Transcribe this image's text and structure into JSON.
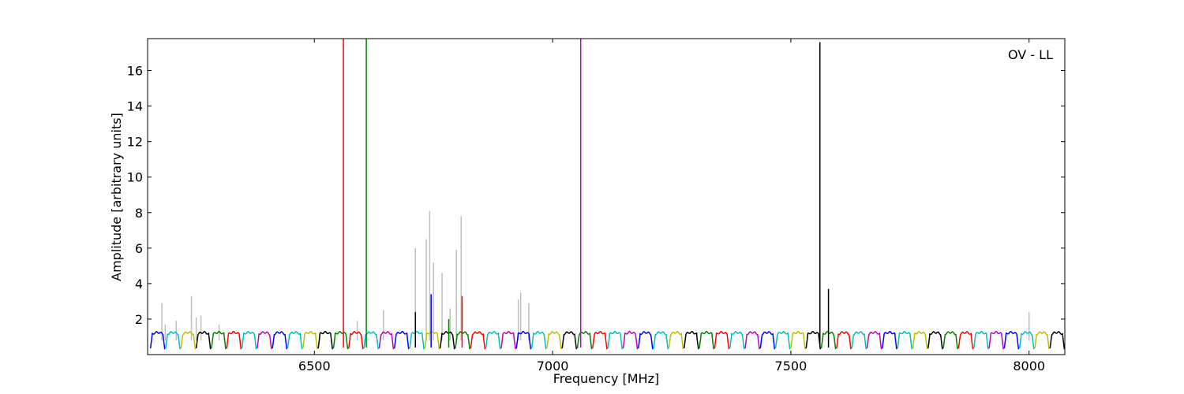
{
  "chart_data": {
    "type": "line",
    "title": "",
    "annotation": "OV - LL",
    "xlabel": "Frequency [MHz]",
    "ylabel": "Amplitude [arbitrary units]",
    "xlim": [
      6150,
      8075
    ],
    "ylim": [
      0,
      17.8
    ],
    "xticks": [
      6500,
      7000,
      7500,
      8000
    ],
    "yticks": [
      2,
      4,
      6,
      8,
      10,
      12,
      14,
      16
    ],
    "grid": false,
    "legend": "none",
    "band_width_mhz": 32,
    "band_colors": [
      "#0000ff",
      "#00bfbf",
      "#bfbf00",
      "#000000",
      "#008000",
      "#ff0000",
      "#00bfbf",
      "#bf00bf"
    ],
    "raw_spectrum_color": "#bfbfbf",
    "raw_spikes": [
      {
        "x": 6180,
        "y": 2.9
      },
      {
        "x": 6187,
        "y": 1.7
      },
      {
        "x": 6210,
        "y": 1.9
      },
      {
        "x": 6242,
        "y": 3.3
      },
      {
        "x": 6252,
        "y": 2.1
      },
      {
        "x": 6262,
        "y": 2.2
      },
      {
        "x": 6300,
        "y": 1.7
      },
      {
        "x": 6590,
        "y": 1.9
      },
      {
        "x": 6645,
        "y": 2.5
      },
      {
        "x": 6712,
        "y": 6.0
      },
      {
        "x": 6735,
        "y": 6.5
      },
      {
        "x": 6742,
        "y": 8.1
      },
      {
        "x": 6750,
        "y": 5.2
      },
      {
        "x": 6768,
        "y": 4.6
      },
      {
        "x": 6785,
        "y": 2.6
      },
      {
        "x": 6798,
        "y": 5.9
      },
      {
        "x": 6808,
        "y": 7.8
      },
      {
        "x": 6928,
        "y": 3.1
      },
      {
        "x": 6933,
        "y": 3.5
      },
      {
        "x": 6950,
        "y": 2.9
      },
      {
        "x": 8000,
        "y": 2.4
      }
    ],
    "series": [
      {
        "color": "#ff0000",
        "values": [
          {
            "x": 6561,
            "y": 17.8
          }
        ]
      },
      {
        "color": "#008000",
        "values": [
          {
            "x": 6609,
            "y": 17.8
          }
        ]
      },
      {
        "color": "#bf00bf",
        "values": [
          {
            "x": 7059,
            "y": 17.8
          }
        ]
      },
      {
        "color": "#000000",
        "values": [
          {
            "x": 7561,
            "y": 17.6
          },
          {
            "x": 7579,
            "y": 3.7
          },
          {
            "x": 6712,
            "y": 2.4
          }
        ]
      },
      {
        "color": "#0000ff",
        "values": [
          {
            "x": 6745,
            "y": 3.4
          }
        ]
      },
      {
        "color": "#ff0000",
        "values": [
          {
            "x": 6810,
            "y": 3.3
          }
        ]
      },
      {
        "color": "#008000",
        "values": [
          {
            "x": 6782,
            "y": 2.0
          }
        ]
      }
    ]
  }
}
